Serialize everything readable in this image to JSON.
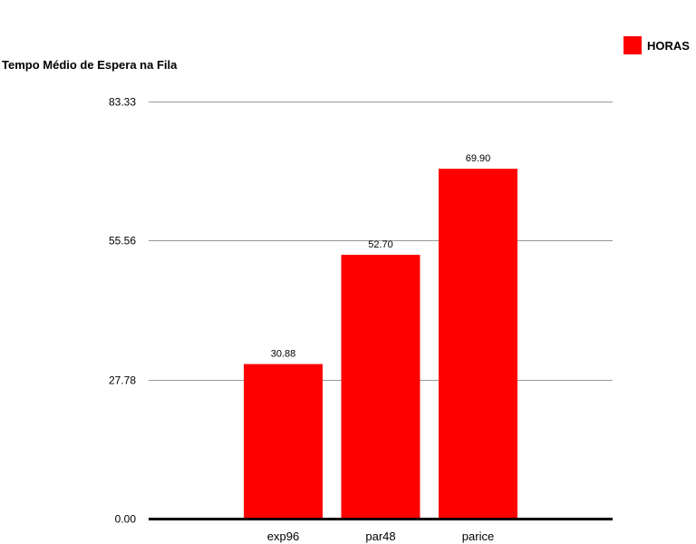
{
  "chart_data": {
    "type": "bar",
    "title": "Tempo Médio de Espera na Fila",
    "legend": {
      "label": "HORAS",
      "color": "#ff0000",
      "position": "top-right"
    },
    "categories": [
      "exp96",
      "par48",
      "parice"
    ],
    "series": [
      {
        "name": "HORAS",
        "values": [
          30.88,
          52.7,
          69.9
        ],
        "labels": [
          "30.88",
          "52.70",
          "69.90"
        ],
        "color": "#ff0000"
      }
    ],
    "yticks": [
      "0.00",
      "27.78",
      "55.56",
      "83.33"
    ],
    "ylim": [
      0,
      83.33
    ],
    "grid": true,
    "xlabel": "",
    "ylabel": ""
  }
}
